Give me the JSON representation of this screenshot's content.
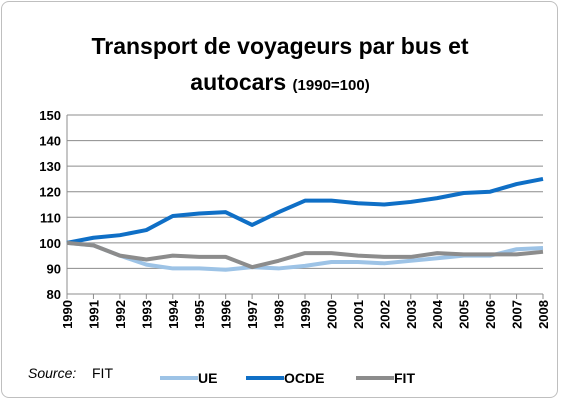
{
  "chart_data": {
    "type": "line",
    "title": "Transport de voyageurs par bus et autocars",
    "subtitle": "(1990=100)",
    "source_label": "Source:",
    "source": "FIT",
    "x": [
      "1990",
      "1991",
      "1992",
      "1993",
      "1994",
      "1995",
      "1996",
      "1997",
      "1998",
      "1999",
      "2000",
      "2001",
      "2002",
      "2003",
      "2004",
      "2005",
      "2006",
      "2007",
      "2008"
    ],
    "series": [
      {
        "name": "UE",
        "color": "#9dc3e6",
        "values": [
          100,
          99,
          95,
          91.5,
          90,
          90,
          89.5,
          90.5,
          90,
          91,
          92.5,
          92.5,
          92,
          93,
          94,
          95,
          95,
          97.5,
          98
        ]
      },
      {
        "name": "OCDE",
        "color": "#0f6fc6",
        "values": [
          100,
          102,
          103,
          105,
          110.5,
          111.5,
          112,
          107,
          112,
          116.5,
          116.5,
          115.5,
          115,
          116,
          117.5,
          119.5,
          120,
          123,
          125
        ]
      },
      {
        "name": "FIT",
        "color": "#8c8c8c",
        "values": [
          100,
          99,
          95,
          93.5,
          95,
          94.5,
          94.5,
          90.5,
          93,
          96,
          96,
          95,
          94.5,
          94.5,
          96,
          95.5,
          95.5,
          95.5,
          96.5
        ]
      }
    ],
    "ylim": [
      80,
      150
    ],
    "yticks": [
      80,
      90,
      100,
      110,
      120,
      130,
      140,
      150
    ],
    "grid": true
  }
}
